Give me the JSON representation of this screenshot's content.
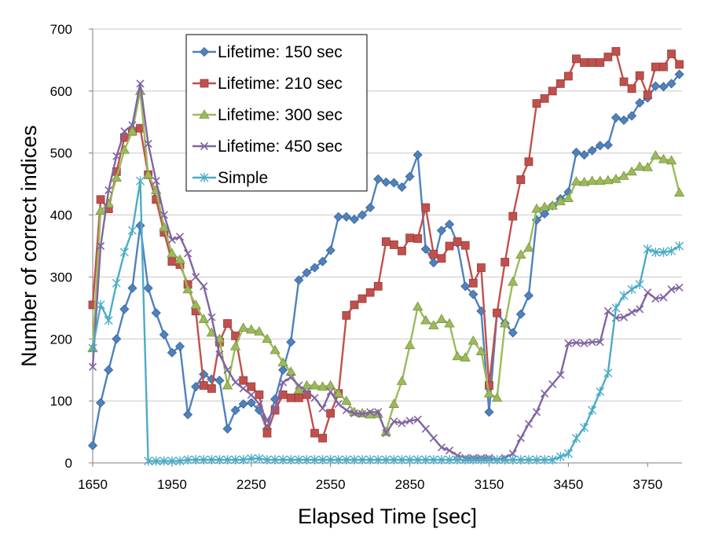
{
  "chart_data": {
    "type": "line",
    "title": "",
    "xlabel": "Elapsed Time [sec]",
    "ylabel": "Number of correct indices",
    "xlim": [
      1650,
      3880
    ],
    "ylim": [
      0,
      700
    ],
    "x_ticks": [
      1650,
      1950,
      2250,
      2550,
      2850,
      3150,
      3450,
      3750
    ],
    "y_ticks": [
      0,
      100,
      200,
      300,
      400,
      500,
      600,
      700
    ],
    "x_tick_labels": [
      "1650",
      "1950",
      "2250",
      "2550",
      "2850",
      "3150",
      "3450",
      "3750"
    ],
    "y_tick_labels": [
      "0",
      "100",
      "200",
      "300",
      "400",
      "500",
      "600",
      "700"
    ],
    "grid": "horizontal",
    "legend_position": "top-left",
    "series": [
      {
        "name": "Lifetime: 150 sec",
        "color": "#4f81bd",
        "marker": "diamond",
        "x": [
          1650,
          1680,
          1710,
          1740,
          1770,
          1800,
          1830,
          1860,
          1890,
          1920,
          1950,
          1980,
          2010,
          2040,
          2070,
          2100,
          2130,
          2160,
          2190,
          2220,
          2250,
          2280,
          2310,
          2340,
          2370,
          2400,
          2430,
          2460,
          2490,
          2520,
          2550,
          2580,
          2610,
          2640,
          2670,
          2700,
          2730,
          2760,
          2790,
          2820,
          2850,
          2880,
          2910,
          2940,
          2970,
          3000,
          3030,
          3060,
          3090,
          3120,
          3150,
          3180,
          3210,
          3240,
          3270,
          3300,
          3330,
          3360,
          3390,
          3420,
          3450,
          3480,
          3510,
          3540,
          3570,
          3600,
          3630,
          3660,
          3690,
          3720,
          3750,
          3780,
          3810,
          3840,
          3870
        ],
        "values": [
          28,
          97,
          150,
          200,
          248,
          282,
          383,
          282,
          242,
          207,
          178,
          188,
          78,
          123,
          143,
          135,
          133,
          55,
          85,
          95,
          97,
          85,
          55,
          103,
          150,
          195,
          295,
          307,
          315,
          325,
          343,
          397,
          397,
          393,
          400,
          412,
          458,
          453,
          452,
          445,
          462,
          497,
          345,
          323,
          375,
          385,
          355,
          285,
          272,
          245,
          82,
          242,
          225,
          210,
          240,
          270,
          392,
          402,
          415,
          426,
          437,
          501,
          497,
          504,
          512,
          513,
          557,
          553,
          560,
          581,
          589,
          608,
          607,
          612,
          627
        ]
      },
      {
        "name": "Lifetime: 210 sec",
        "color": "#c0504d",
        "marker": "square",
        "x": [
          1650,
          1680,
          1710,
          1740,
          1770,
          1800,
          1830,
          1860,
          1890,
          1920,
          1950,
          1980,
          2010,
          2040,
          2070,
          2100,
          2130,
          2160,
          2190,
          2220,
          2250,
          2280,
          2310,
          2340,
          2370,
          2400,
          2430,
          2460,
          2490,
          2520,
          2550,
          2580,
          2610,
          2640,
          2670,
          2700,
          2730,
          2760,
          2790,
          2820,
          2850,
          2880,
          2910,
          2940,
          2970,
          3000,
          3030,
          3060,
          3090,
          3120,
          3150,
          3180,
          3210,
          3240,
          3270,
          3300,
          3330,
          3360,
          3390,
          3420,
          3450,
          3480,
          3510,
          3540,
          3570,
          3600,
          3630,
          3660,
          3690,
          3720,
          3750,
          3780,
          3810,
          3840,
          3870
        ],
        "values": [
          255,
          425,
          410,
          470,
          525,
          535,
          540,
          465,
          425,
          372,
          325,
          320,
          288,
          245,
          125,
          120,
          195,
          225,
          205,
          133,
          123,
          110,
          48,
          85,
          110,
          105,
          105,
          110,
          48,
          40,
          80,
          112,
          238,
          255,
          265,
          275,
          285,
          357,
          352,
          342,
          363,
          362,
          412,
          337,
          330,
          350,
          357,
          351,
          290,
          315,
          125,
          242,
          324,
          398,
          457,
          486,
          580,
          588,
          600,
          612,
          624,
          652,
          646,
          646,
          646,
          655,
          664,
          615,
          604,
          625,
          594,
          639,
          639,
          660,
          643
        ]
      },
      {
        "name": "Lifetime: 300 sec",
        "color": "#9bbb59",
        "marker": "triangle",
        "x": [
          1650,
          1680,
          1710,
          1740,
          1770,
          1800,
          1830,
          1860,
          1890,
          1920,
          1950,
          1980,
          2010,
          2040,
          2070,
          2100,
          2130,
          2160,
          2190,
          2220,
          2250,
          2280,
          2310,
          2340,
          2370,
          2400,
          2430,
          2460,
          2490,
          2520,
          2550,
          2580,
          2610,
          2640,
          2670,
          2700,
          2730,
          2760,
          2790,
          2820,
          2850,
          2880,
          2910,
          2940,
          2970,
          3000,
          3030,
          3060,
          3090,
          3120,
          3150,
          3180,
          3210,
          3240,
          3270,
          3300,
          3330,
          3360,
          3390,
          3420,
          3450,
          3480,
          3510,
          3540,
          3570,
          3600,
          3630,
          3660,
          3690,
          3720,
          3750,
          3780,
          3810,
          3840,
          3870
        ],
        "values": [
          185,
          407,
          418,
          460,
          505,
          535,
          600,
          465,
          440,
          380,
          338,
          328,
          280,
          255,
          232,
          210,
          200,
          125,
          188,
          218,
          215,
          212,
          200,
          182,
          162,
          147,
          118,
          125,
          125,
          123,
          125,
          112,
          100,
          82,
          80,
          78,
          79,
          50,
          95,
          132,
          190,
          252,
          230,
          222,
          232,
          225,
          172,
          170,
          197,
          180,
          112,
          105,
          225,
          292,
          336,
          347,
          410,
          413,
          415,
          422,
          427,
          454,
          453,
          455,
          455,
          456,
          458,
          463,
          470,
          478,
          477,
          496,
          490,
          488,
          436
        ]
      },
      {
        "name": "Lifetime: 450 sec",
        "color": "#8064a2",
        "marker": "x",
        "x": [
          1650,
          1680,
          1710,
          1740,
          1770,
          1800,
          1830,
          1860,
          1890,
          1920,
          1950,
          1980,
          2010,
          2040,
          2070,
          2100,
          2130,
          2160,
          2190,
          2220,
          2250,
          2280,
          2310,
          2340,
          2370,
          2400,
          2430,
          2460,
          2490,
          2520,
          2550,
          2580,
          2610,
          2640,
          2670,
          2700,
          2730,
          2760,
          2790,
          2820,
          2850,
          2880,
          2910,
          2940,
          2970,
          3000,
          3030,
          3060,
          3090,
          3120,
          3150,
          3180,
          3210,
          3240,
          3270,
          3300,
          3330,
          3360,
          3390,
          3420,
          3450,
          3480,
          3510,
          3540,
          3570,
          3600,
          3630,
          3660,
          3690,
          3720,
          3750,
          3780,
          3810,
          3840,
          3870
        ],
        "values": [
          155,
          350,
          440,
          495,
          535,
          545,
          612,
          515,
          455,
          400,
          360,
          365,
          338,
          300,
          285,
          235,
          175,
          150,
          130,
          120,
          110,
          95,
          68,
          88,
          130,
          138,
          125,
          115,
          105,
          88,
          115,
          95,
          85,
          80,
          79,
          82,
          82,
          48,
          67,
          64,
          68,
          70,
          55,
          40,
          25,
          20,
          12,
          8,
          8,
          8,
          8,
          5,
          8,
          15,
          40,
          63,
          82,
          112,
          127,
          142,
          193,
          194,
          193,
          195,
          195,
          245,
          234,
          235,
          243,
          248,
          275,
          265,
          267,
          280,
          283
        ]
      },
      {
        "name": "Simple",
        "color": "#4bacc6",
        "marker": "star",
        "x": [
          1650,
          1680,
          1710,
          1740,
          1770,
          1800,
          1830,
          1860,
          1890,
          1920,
          1950,
          1980,
          2010,
          2040,
          2070,
          2100,
          2130,
          2160,
          2190,
          2220,
          2250,
          2280,
          2310,
          2340,
          2370,
          2400,
          2430,
          2460,
          2490,
          2520,
          2550,
          2580,
          2610,
          2640,
          2670,
          2700,
          2730,
          2760,
          2790,
          2820,
          2850,
          2880,
          2910,
          2940,
          2970,
          3000,
          3030,
          3060,
          3090,
          3120,
          3150,
          3180,
          3210,
          3240,
          3270,
          3300,
          3330,
          3360,
          3390,
          3420,
          3450,
          3480,
          3510,
          3540,
          3570,
          3600,
          3630,
          3660,
          3690,
          3720,
          3750,
          3780,
          3810,
          3840,
          3870
        ],
        "values": [
          185,
          255,
          230,
          290,
          340,
          375,
          455,
          3,
          3,
          3,
          3,
          3,
          5,
          5,
          5,
          5,
          5,
          5,
          5,
          5,
          7,
          7,
          5,
          5,
          5,
          5,
          5,
          5,
          5,
          5,
          5,
          5,
          5,
          5,
          5,
          5,
          5,
          5,
          5,
          5,
          5,
          5,
          5,
          5,
          5,
          5,
          5,
          5,
          5,
          5,
          5,
          5,
          5,
          5,
          5,
          5,
          5,
          5,
          5,
          10,
          15,
          40,
          57,
          85,
          115,
          145,
          250,
          270,
          280,
          288,
          345,
          340,
          340,
          342,
          350
        ]
      }
    ]
  }
}
